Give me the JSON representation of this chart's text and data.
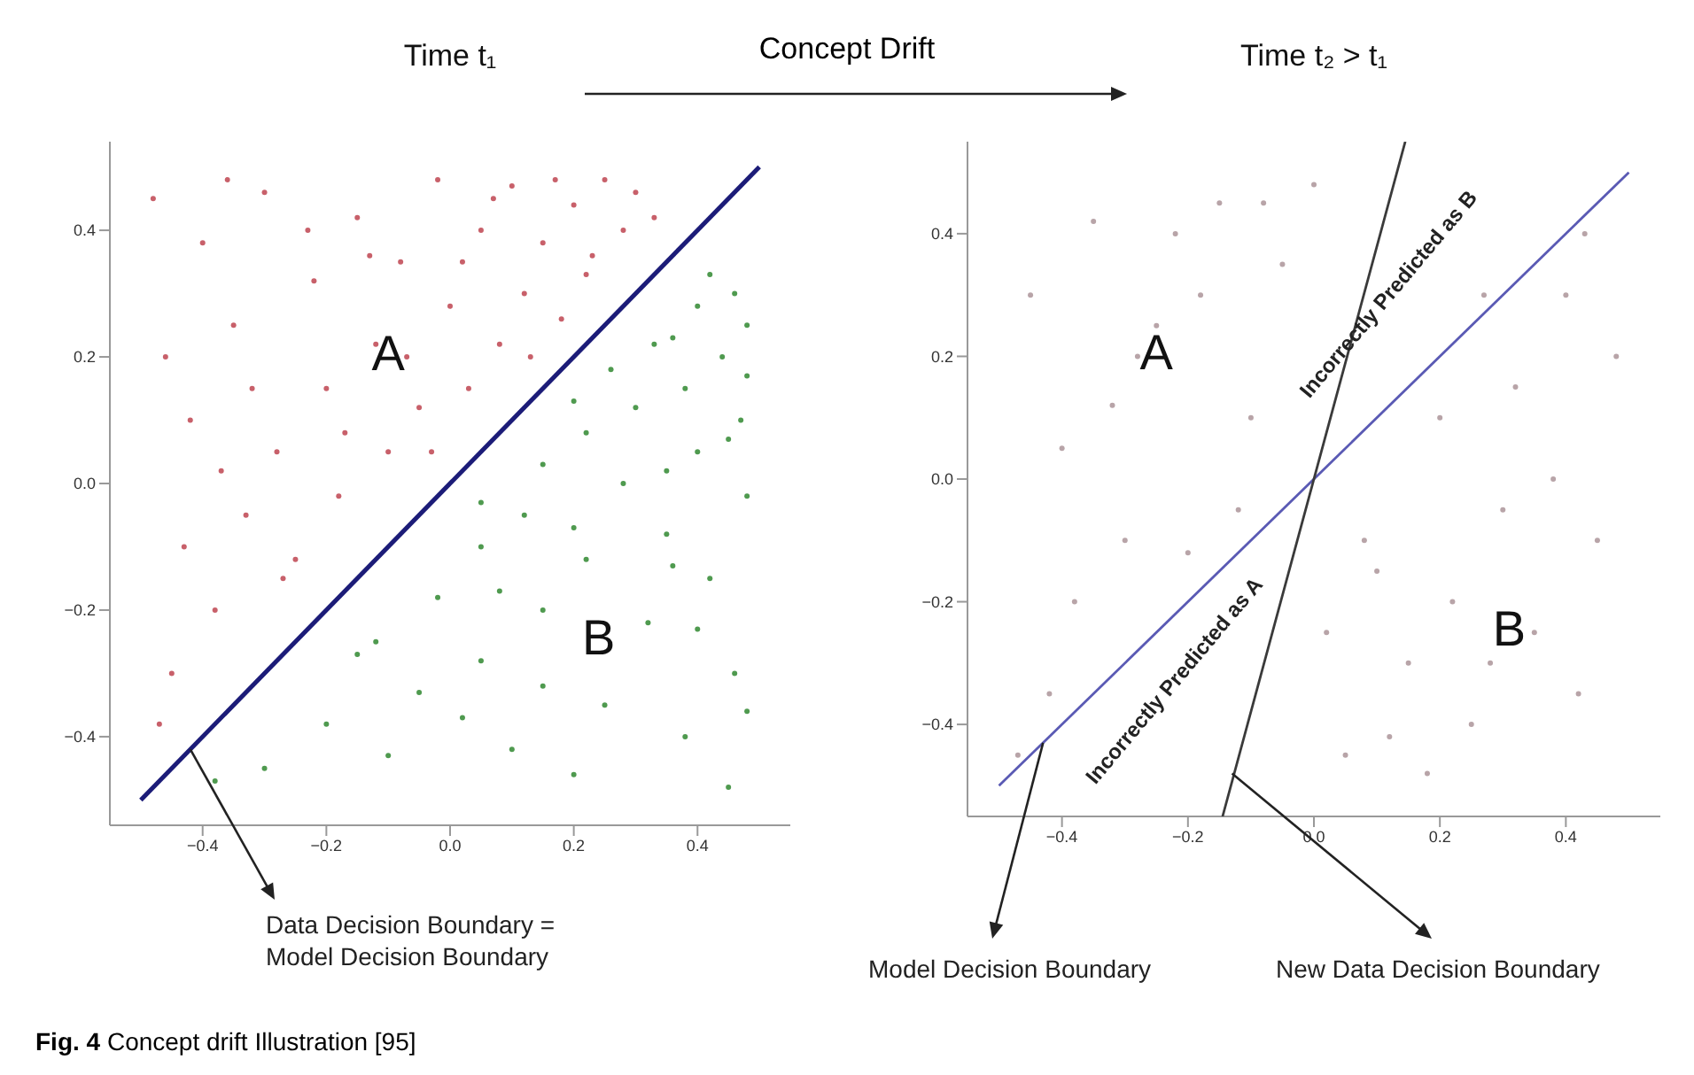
{
  "chart_data": [
    {
      "type": "scatter",
      "title": "Time t₁",
      "xlim": [
        -0.55,
        0.55
      ],
      "ylim": [
        -0.54,
        0.54
      ],
      "xticks": [
        {
          "value": -0.4,
          "label": "−0.4"
        },
        {
          "value": -0.2,
          "label": "−0.2"
        },
        {
          "value": 0,
          "label": "0.0"
        },
        {
          "value": 0.2,
          "label": "0.2"
        },
        {
          "value": 0.4,
          "label": "0.4"
        }
      ],
      "yticks": [
        {
          "value": -0.4,
          "label": "−0.4"
        },
        {
          "value": -0.2,
          "label": "−0.2"
        },
        {
          "value": 0,
          "label": "0.0"
        },
        {
          "value": 0.2,
          "label": "0.2"
        },
        {
          "value": 0.4,
          "label": "0.4"
        }
      ],
      "grid": false,
      "marker": "circle",
      "series": [
        {
          "color": "#c8606a",
          "x": [
            -0.48,
            -0.45,
            -0.42,
            -0.4,
            -0.38,
            -0.35,
            -0.33,
            -0.3,
            -0.28,
            -0.25,
            -0.22,
            -0.2,
            -0.18,
            -0.15,
            -0.12,
            -0.1,
            -0.08,
            -0.05,
            -0.02,
            0.0,
            0.03,
            0.05,
            0.08,
            0.1,
            0.12,
            0.15,
            0.18,
            0.2,
            0.22,
            0.25,
            0.28,
            0.3,
            0.33,
            -0.47,
            -0.43,
            -0.37,
            -0.32,
            -0.27,
            -0.23,
            -0.17,
            -0.13,
            -0.07,
            -0.03,
            0.02,
            0.07,
            0.13,
            0.17,
            0.23,
            -0.46,
            -0.36
          ],
          "values": [
            0.45,
            -0.3,
            0.1,
            0.38,
            -0.2,
            0.25,
            -0.05,
            0.46,
            0.05,
            -0.12,
            0.32,
            0.15,
            -0.02,
            0.42,
            0.22,
            0.05,
            0.35,
            0.12,
            0.48,
            0.28,
            0.15,
            0.4,
            0.22,
            0.47,
            0.3,
            0.38,
            0.26,
            0.44,
            0.33,
            0.48,
            0.4,
            0.46,
            0.42,
            -0.38,
            -0.1,
            0.02,
            0.15,
            -0.15,
            0.4,
            0.08,
            0.36,
            0.2,
            0.05,
            0.35,
            0.45,
            0.2,
            0.48,
            0.36,
            0.2,
            0.48
          ]
        },
        {
          "color": "#4f9a4f",
          "x": [
            0.45,
            -0.3,
            0.1,
            0.38,
            -0.2,
            0.25,
            -0.05,
            0.46,
            0.05,
            -0.12,
            0.32,
            0.15,
            -0.02,
            0.42,
            0.22,
            0.05,
            0.35,
            0.12,
            0.48,
            0.28,
            0.15,
            0.4,
            0.22,
            0.47,
            0.3,
            0.38,
            0.26,
            0.44,
            0.33,
            0.48,
            0.4,
            0.46,
            0.42,
            -0.38,
            -0.1,
            0.02,
            0.15,
            -0.15,
            0.4,
            0.08,
            0.36,
            0.2,
            0.05,
            0.35,
            0.45,
            0.2,
            0.48,
            0.36,
            0.2,
            0.48
          ],
          "values": [
            -0.48,
            -0.45,
            -0.42,
            -0.4,
            -0.38,
            -0.35,
            -0.33,
            -0.3,
            -0.28,
            -0.25,
            -0.22,
            -0.2,
            -0.18,
            -0.15,
            -0.12,
            -0.1,
            -0.08,
            -0.05,
            -0.02,
            0.0,
            0.03,
            0.05,
            0.08,
            0.1,
            0.12,
            0.15,
            0.18,
            0.2,
            0.22,
            0.25,
            0.28,
            0.3,
            0.33,
            -0.47,
            -0.43,
            -0.37,
            -0.32,
            -0.27,
            -0.23,
            -0.17,
            -0.13,
            -0.07,
            -0.03,
            0.02,
            0.07,
            0.13,
            0.17,
            0.23,
            -0.46,
            -0.36
          ]
        },
        {
          "type": "line",
          "color": "#1c1c78",
          "marker": "none",
          "x": [
            -0.5,
            0.5
          ],
          "values": [
            -0.5,
            0.5
          ]
        }
      ],
      "annotations": [
        "A",
        "B",
        {
          "text": "Data Decision Boundary = Model Decision Boundary",
          "x": -0.42,
          "y": -0.42
        },
        "Concept Drift"
      ]
    },
    {
      "type": "scatter",
      "title": "Time t₂ > t₁",
      "xlim": [
        -0.55,
        0.55
      ],
      "ylim": [
        -0.55,
        0.55
      ],
      "xticks": [
        {
          "value": -0.4,
          "label": "−0.4"
        },
        {
          "value": -0.2,
          "label": "−0.2"
        },
        {
          "value": 0,
          "label": "0.0"
        },
        {
          "value": 0.2,
          "label": "0.2"
        },
        {
          "value": 0.4,
          "label": "0.4"
        }
      ],
      "yticks": [
        {
          "value": -0.4,
          "label": "−0.4"
        },
        {
          "value": -0.2,
          "label": "−0.2"
        },
        {
          "value": 0,
          "label": "0.0"
        },
        {
          "value": 0.2,
          "label": "0.2"
        },
        {
          "value": 0.4,
          "label": "0.4"
        }
      ],
      "grid": false,
      "marker": "circle",
      "series": [
        {
          "color": "#b8a4a8",
          "x": [
            -0.45,
            -0.4,
            -0.35,
            -0.3,
            -0.25,
            -0.2,
            -0.15,
            -0.1,
            -0.05,
            0.0,
            -0.42,
            -0.32,
            -0.22,
            -0.12,
            -0.38,
            -0.28,
            -0.18,
            -0.08,
            0.05,
            0.1,
            0.15,
            0.2,
            0.25,
            0.3,
            0.35,
            0.4,
            0.45,
            0.48,
            0.12,
            0.22,
            0.32,
            0.42,
            0.08,
            0.18,
            0.28,
            0.38,
            0.02,
            -0.47,
            0.27,
            0.43
          ],
          "values": [
            0.3,
            0.05,
            0.42,
            -0.1,
            0.25,
            -0.12,
            0.45,
            0.1,
            0.35,
            0.48,
            -0.35,
            0.12,
            0.4,
            -0.05,
            -0.2,
            0.2,
            0.3,
            0.45,
            -0.45,
            -0.15,
            -0.3,
            0.1,
            -0.4,
            -0.05,
            -0.25,
            0.3,
            -0.1,
            0.2,
            -0.42,
            -0.2,
            0.15,
            -0.35,
            -0.1,
            -0.48,
            -0.3,
            0.0,
            -0.25,
            -0.45,
            0.3,
            0.4
          ]
        },
        {
          "type": "line",
          "color": "#5a5ab4",
          "marker": "none",
          "x": [
            -0.5,
            0.5
          ],
          "values": [
            -0.5,
            0.5
          ]
        },
        {
          "type": "line",
          "color": "#3a3a3a",
          "marker": "none",
          "x": [
            -0.145,
            0.145
          ],
          "values": [
            -0.55,
            0.55
          ]
        }
      ],
      "annotations": [
        "A",
        "B",
        "Incorrectly Predicted as B",
        "Incorrectly Predicted as A",
        {
          "text": "Model Decision Boundary",
          "x": -0.43,
          "y": -0.43
        },
        {
          "text": "New Data Decision Boundary",
          "x": -0.13,
          "y": -0.48
        },
        "Fig. 4 Concept drift Illustration [95]"
      ]
    }
  ]
}
